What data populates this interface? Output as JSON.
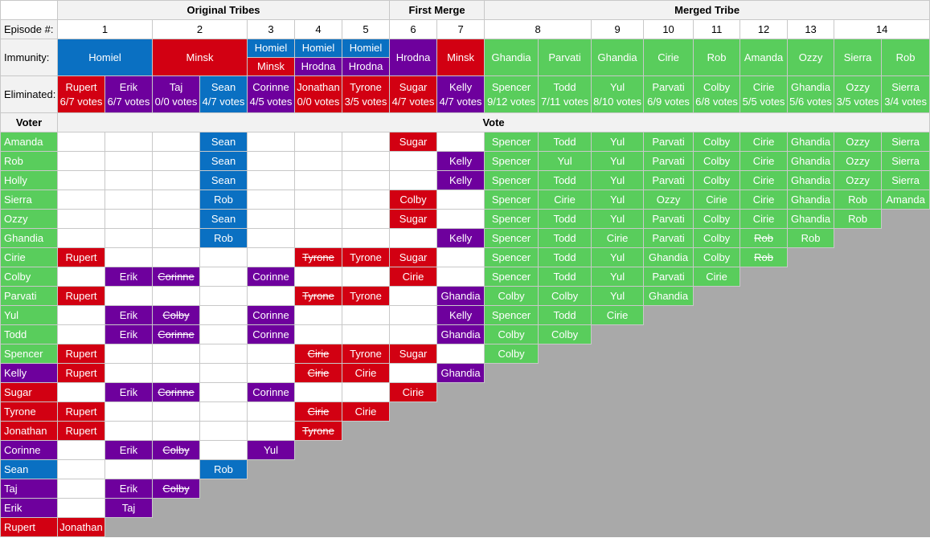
{
  "colors": {
    "Homiel": "#0a70c2",
    "Minsk": "#d20012",
    "Hrodna": "#6e009d",
    "Merged": "#59cd5c",
    "header_bg": "#f2f2f2",
    "empty_area": "#a9a9a9"
  },
  "header": {
    "original_tribes": "Original Tribes",
    "first_merge": "First Merge",
    "merged_tribe": "Merged Tribe",
    "episode_label": "Episode #:",
    "immunity_label": "Immunity:",
    "eliminated_label": "Eliminated:",
    "voter_label": "Voter",
    "vote_label": "Vote"
  },
  "episodes": [
    {
      "label": "1",
      "span": 2
    },
    {
      "label": "2",
      "span": 2
    },
    {
      "label": "3",
      "span": 1
    },
    {
      "label": "4",
      "span": 1
    },
    {
      "label": "5",
      "span": 1
    },
    {
      "label": "6",
      "span": 1
    },
    {
      "label": "7",
      "span": 1
    },
    {
      "label": "8",
      "span": 2
    },
    {
      "label": "9",
      "span": 1
    },
    {
      "label": "10",
      "span": 1
    },
    {
      "label": "11",
      "span": 1
    },
    {
      "label": "12",
      "span": 1
    },
    {
      "label": "13",
      "span": 1
    },
    {
      "label": "14",
      "span": 2
    }
  ],
  "immunity": [
    {
      "span": 2,
      "winners": [
        {
          "text": "Homiel",
          "tribe": "Homiel"
        }
      ]
    },
    {
      "span": 2,
      "winners": [
        {
          "text": "Minsk",
          "tribe": "Minsk"
        }
      ]
    },
    {
      "span": 1,
      "winners": [
        {
          "text": "Homiel",
          "tribe": "Homiel"
        },
        {
          "text": "Minsk",
          "tribe": "Minsk"
        }
      ]
    },
    {
      "span": 1,
      "winners": [
        {
          "text": "Homiel",
          "tribe": "Homiel"
        },
        {
          "text": "Hrodna",
          "tribe": "Hrodna"
        }
      ]
    },
    {
      "span": 1,
      "winners": [
        {
          "text": "Homiel",
          "tribe": "Homiel"
        },
        {
          "text": "Hrodna",
          "tribe": "Hrodna"
        }
      ]
    },
    {
      "span": 1,
      "winners": [
        {
          "text": "Hrodna",
          "tribe": "Hrodna"
        }
      ]
    },
    {
      "span": 1,
      "winners": [
        {
          "text": "Minsk",
          "tribe": "Minsk"
        }
      ]
    },
    {
      "span": 1,
      "winners": [
        {
          "text": "Ghandia",
          "tribe": "Merged"
        }
      ]
    },
    {
      "span": 1,
      "winners": [
        {
          "text": "Parvati",
          "tribe": "Merged"
        }
      ]
    },
    {
      "span": 1,
      "winners": [
        {
          "text": "Ghandia",
          "tribe": "Merged"
        }
      ]
    },
    {
      "span": 1,
      "winners": [
        {
          "text": "Cirie",
          "tribe": "Merged"
        }
      ]
    },
    {
      "span": 1,
      "winners": [
        {
          "text": "Rob",
          "tribe": "Merged"
        }
      ]
    },
    {
      "span": 1,
      "winners": [
        {
          "text": "Amanda",
          "tribe": "Merged"
        }
      ]
    },
    {
      "span": 1,
      "winners": [
        {
          "text": "Ozzy",
          "tribe": "Merged"
        }
      ]
    },
    {
      "span": 1,
      "winners": [
        {
          "text": "Sierra",
          "tribe": "Merged"
        }
      ]
    },
    {
      "span": 1,
      "winners": [
        {
          "text": "Rob",
          "tribe": "Merged"
        }
      ]
    }
  ],
  "eliminated": [
    {
      "name": "Rupert",
      "votes": "6/7 votes",
      "tribe": "Minsk"
    },
    {
      "name": "Erik",
      "votes": "6/7 votes",
      "tribe": "Hrodna"
    },
    {
      "name": "Taj",
      "votes": "0/0 votes",
      "tribe": "Hrodna"
    },
    {
      "name": "Sean",
      "votes": "4/7 votes",
      "tribe": "Homiel"
    },
    {
      "name": "Corinne",
      "votes": "4/5 votes",
      "tribe": "Hrodna"
    },
    {
      "name": "Jonathan",
      "votes": "0/0 votes",
      "tribe": "Minsk"
    },
    {
      "name": "Tyrone",
      "votes": "3/5 votes",
      "tribe": "Minsk"
    },
    {
      "name": "Sugar",
      "votes": "4/7 votes",
      "tribe": "Minsk"
    },
    {
      "name": "Kelly",
      "votes": "4/7 votes",
      "tribe": "Hrodna"
    },
    {
      "name": "Spencer",
      "votes": "9/12 votes",
      "tribe": "Merged"
    },
    {
      "name": "Todd",
      "votes": "7/11 votes",
      "tribe": "Merged"
    },
    {
      "name": "Yul",
      "votes": "8/10 votes",
      "tribe": "Merged"
    },
    {
      "name": "Parvati",
      "votes": "6/9 votes",
      "tribe": "Merged"
    },
    {
      "name": "Colby",
      "votes": "6/8 votes",
      "tribe": "Merged"
    },
    {
      "name": "Cirie",
      "votes": "5/5 votes",
      "tribe": "Merged"
    },
    {
      "name": "Ghandia",
      "votes": "5/6 votes",
      "tribe": "Merged"
    },
    {
      "name": "Ozzy",
      "votes": "3/5 votes",
      "tribe": "Merged"
    },
    {
      "name": "Sierra",
      "votes": "3/4 votes",
      "tribe": "Merged"
    }
  ],
  "voters": [
    {
      "name": "Amanda",
      "tribe": "Merged",
      "votes": [
        null,
        null,
        null,
        {
          "v": "Sean",
          "t": "Homiel"
        },
        null,
        null,
        null,
        {
          "v": "Sugar",
          "t": "Minsk"
        },
        null,
        {
          "v": "Spencer",
          "t": "Merged"
        },
        {
          "v": "Todd",
          "t": "Merged"
        },
        {
          "v": "Yul",
          "t": "Merged"
        },
        {
          "v": "Parvati",
          "t": "Merged"
        },
        {
          "v": "Colby",
          "t": "Merged"
        },
        {
          "v": "Cirie",
          "t": "Merged"
        },
        {
          "v": "Ghandia",
          "t": "Merged"
        },
        {
          "v": "Ozzy",
          "t": "Merged"
        },
        {
          "v": "Sierra",
          "t": "Merged"
        }
      ]
    },
    {
      "name": "Rob",
      "tribe": "Merged",
      "votes": [
        null,
        null,
        null,
        {
          "v": "Sean",
          "t": "Homiel"
        },
        null,
        null,
        null,
        null,
        {
          "v": "Kelly",
          "t": "Hrodna"
        },
        {
          "v": "Spencer",
          "t": "Merged"
        },
        {
          "v": "Yul",
          "t": "Merged"
        },
        {
          "v": "Yul",
          "t": "Merged"
        },
        {
          "v": "Parvati",
          "t": "Merged"
        },
        {
          "v": "Colby",
          "t": "Merged"
        },
        {
          "v": "Cirie",
          "t": "Merged"
        },
        {
          "v": "Ghandia",
          "t": "Merged"
        },
        {
          "v": "Ozzy",
          "t": "Merged"
        },
        {
          "v": "Sierra",
          "t": "Merged"
        }
      ]
    },
    {
      "name": "Holly",
      "tribe": "Merged",
      "votes": [
        null,
        null,
        null,
        {
          "v": "Sean",
          "t": "Homiel"
        },
        null,
        null,
        null,
        null,
        {
          "v": "Kelly",
          "t": "Hrodna"
        },
        {
          "v": "Spencer",
          "t": "Merged"
        },
        {
          "v": "Todd",
          "t": "Merged"
        },
        {
          "v": "Yul",
          "t": "Merged"
        },
        {
          "v": "Parvati",
          "t": "Merged"
        },
        {
          "v": "Colby",
          "t": "Merged"
        },
        {
          "v": "Cirie",
          "t": "Merged"
        },
        {
          "v": "Ghandia",
          "t": "Merged"
        },
        {
          "v": "Ozzy",
          "t": "Merged"
        },
        {
          "v": "Sierra",
          "t": "Merged"
        }
      ]
    },
    {
      "name": "Sierra",
      "tribe": "Merged",
      "votes": [
        null,
        null,
        null,
        {
          "v": "Rob",
          "t": "Homiel"
        },
        null,
        null,
        null,
        {
          "v": "Colby",
          "t": "Minsk"
        },
        null,
        {
          "v": "Spencer",
          "t": "Merged"
        },
        {
          "v": "Cirie",
          "t": "Merged"
        },
        {
          "v": "Yul",
          "t": "Merged"
        },
        {
          "v": "Ozzy",
          "t": "Merged"
        },
        {
          "v": "Cirie",
          "t": "Merged"
        },
        {
          "v": "Cirie",
          "t": "Merged"
        },
        {
          "v": "Ghandia",
          "t": "Merged"
        },
        {
          "v": "Rob",
          "t": "Merged"
        },
        {
          "v": "Amanda",
          "t": "Merged"
        }
      ]
    },
    {
      "name": "Ozzy",
      "tribe": "Merged",
      "votes": [
        null,
        null,
        null,
        {
          "v": "Sean",
          "t": "Homiel"
        },
        null,
        null,
        null,
        {
          "v": "Sugar",
          "t": "Minsk"
        },
        null,
        {
          "v": "Spencer",
          "t": "Merged"
        },
        {
          "v": "Todd",
          "t": "Merged"
        },
        {
          "v": "Yul",
          "t": "Merged"
        },
        {
          "v": "Parvati",
          "t": "Merged"
        },
        {
          "v": "Colby",
          "t": "Merged"
        },
        {
          "v": "Cirie",
          "t": "Merged"
        },
        {
          "v": "Ghandia",
          "t": "Merged"
        },
        {
          "v": "Rob",
          "t": "Merged"
        }
      ],
      "gray_from": 17
    },
    {
      "name": "Ghandia",
      "tribe": "Merged",
      "votes": [
        null,
        null,
        null,
        {
          "v": "Rob",
          "t": "Homiel"
        },
        null,
        null,
        null,
        null,
        {
          "v": "Kelly",
          "t": "Hrodna"
        },
        {
          "v": "Spencer",
          "t": "Merged"
        },
        {
          "v": "Todd",
          "t": "Merged"
        },
        {
          "v": "Cirie",
          "t": "Merged"
        },
        {
          "v": "Parvati",
          "t": "Merged"
        },
        {
          "v": "Colby",
          "t": "Merged"
        },
        {
          "v": "Rob",
          "t": "Merged",
          "s": true
        },
        {
          "v": "Rob",
          "t": "Merged"
        }
      ],
      "gray_from": 16
    },
    {
      "name": "Cirie",
      "tribe": "Merged",
      "votes": [
        {
          "v": "Rupert",
          "t": "Minsk"
        },
        null,
        null,
        null,
        null,
        {
          "v": "Tyrone",
          "t": "Minsk",
          "s": true
        },
        {
          "v": "Tyrone",
          "t": "Minsk"
        },
        {
          "v": "Sugar",
          "t": "Minsk"
        },
        null,
        {
          "v": "Spencer",
          "t": "Merged"
        },
        {
          "v": "Todd",
          "t": "Merged"
        },
        {
          "v": "Yul",
          "t": "Merged"
        },
        {
          "v": "Ghandia",
          "t": "Merged"
        },
        {
          "v": "Colby",
          "t": "Merged"
        },
        {
          "v": "Rob",
          "t": "Merged",
          "s": true
        }
      ],
      "gray_from": 15
    },
    {
      "name": "Colby",
      "tribe": "Merged",
      "votes": [
        null,
        {
          "v": "Erik",
          "t": "Hrodna"
        },
        {
          "v": "Corinne",
          "t": "Hrodna",
          "s": true
        },
        null,
        {
          "v": "Corinne",
          "t": "Hrodna"
        },
        null,
        null,
        {
          "v": "Cirie",
          "t": "Minsk"
        },
        null,
        {
          "v": "Spencer",
          "t": "Merged"
        },
        {
          "v": "Todd",
          "t": "Merged"
        },
        {
          "v": "Yul",
          "t": "Merged"
        },
        {
          "v": "Parvati",
          "t": "Merged"
        },
        {
          "v": "Cirie",
          "t": "Merged"
        }
      ],
      "gray_from": 14
    },
    {
      "name": "Parvati",
      "tribe": "Merged",
      "votes": [
        {
          "v": "Rupert",
          "t": "Minsk"
        },
        null,
        null,
        null,
        null,
        {
          "v": "Tyrone",
          "t": "Minsk",
          "s": true
        },
        {
          "v": "Tyrone",
          "t": "Minsk"
        },
        null,
        {
          "v": "Ghandia",
          "t": "Hrodna"
        },
        {
          "v": "Colby",
          "t": "Merged"
        },
        {
          "v": "Colby",
          "t": "Merged"
        },
        {
          "v": "Yul",
          "t": "Merged"
        },
        {
          "v": "Ghandia",
          "t": "Merged"
        }
      ],
      "gray_from": 13
    },
    {
      "name": "Yul",
      "tribe": "Merged",
      "votes": [
        null,
        {
          "v": "Erik",
          "t": "Hrodna"
        },
        {
          "v": "Colby",
          "t": "Hrodna",
          "s": true
        },
        null,
        {
          "v": "Corinne",
          "t": "Hrodna"
        },
        null,
        null,
        null,
        {
          "v": "Kelly",
          "t": "Hrodna"
        },
        {
          "v": "Spencer",
          "t": "Merged"
        },
        {
          "v": "Todd",
          "t": "Merged"
        },
        {
          "v": "Cirie",
          "t": "Merged"
        }
      ],
      "gray_from": 12
    },
    {
      "name": "Todd",
      "tribe": "Merged",
      "votes": [
        null,
        {
          "v": "Erik",
          "t": "Hrodna"
        },
        {
          "v": "Corinne",
          "t": "Hrodna",
          "s": true
        },
        null,
        {
          "v": "Corinne",
          "t": "Hrodna"
        },
        null,
        null,
        null,
        {
          "v": "Ghandia",
          "t": "Hrodna"
        },
        {
          "v": "Colby",
          "t": "Merged"
        },
        {
          "v": "Colby",
          "t": "Merged"
        }
      ],
      "gray_from": 11
    },
    {
      "name": "Spencer",
      "tribe": "Merged",
      "votes": [
        {
          "v": "Rupert",
          "t": "Minsk"
        },
        null,
        null,
        null,
        null,
        {
          "v": "Cirie",
          "t": "Minsk",
          "s": true
        },
        {
          "v": "Tyrone",
          "t": "Minsk"
        },
        {
          "v": "Sugar",
          "t": "Minsk"
        },
        null,
        {
          "v": "Colby",
          "t": "Merged"
        }
      ],
      "gray_from": 10
    },
    {
      "name": "Kelly",
      "tribe": "Hrodna",
      "votes": [
        {
          "v": "Rupert",
          "t": "Minsk"
        },
        null,
        null,
        null,
        null,
        {
          "v": "Cirie",
          "t": "Minsk",
          "s": true
        },
        {
          "v": "Cirie",
          "t": "Minsk"
        },
        null,
        {
          "v": "Ghandia",
          "t": "Hrodna"
        }
      ],
      "gray_from": 9
    },
    {
      "name": "Sugar",
      "tribe": "Minsk",
      "votes": [
        null,
        {
          "v": "Erik",
          "t": "Hrodna"
        },
        {
          "v": "Corinne",
          "t": "Hrodna",
          "s": true
        },
        null,
        {
          "v": "Corinne",
          "t": "Hrodna"
        },
        null,
        null,
        {
          "v": "Cirie",
          "t": "Minsk"
        }
      ],
      "gray_from": 8
    },
    {
      "name": "Tyrone",
      "tribe": "Minsk",
      "votes": [
        {
          "v": "Rupert",
          "t": "Minsk"
        },
        null,
        null,
        null,
        null,
        {
          "v": "Cirie",
          "t": "Minsk",
          "s": true
        },
        {
          "v": "Cirie",
          "t": "Minsk"
        }
      ],
      "gray_from": 7
    },
    {
      "name": "Jonathan",
      "tribe": "Minsk",
      "votes": [
        {
          "v": "Rupert",
          "t": "Minsk"
        },
        null,
        null,
        null,
        null,
        {
          "v": "Tyrone",
          "t": "Minsk",
          "s": true
        }
      ],
      "gray_from": 6
    },
    {
      "name": "Corinne",
      "tribe": "Hrodna",
      "votes": [
        null,
        {
          "v": "Erik",
          "t": "Hrodna"
        },
        {
          "v": "Colby",
          "t": "Hrodna",
          "s": true
        },
        null,
        {
          "v": "Yul",
          "t": "Hrodna"
        }
      ],
      "gray_from": 5
    },
    {
      "name": "Sean",
      "tribe": "Homiel",
      "votes": [
        null,
        null,
        null,
        {
          "v": "Rob",
          "t": "Homiel"
        }
      ],
      "gray_from": 4
    },
    {
      "name": "Taj",
      "tribe": "Hrodna",
      "votes": [
        null,
        {
          "v": "Erik",
          "t": "Hrodna"
        },
        {
          "v": "Colby",
          "t": "Hrodna",
          "s": true
        }
      ],
      "gray_from": 3
    },
    {
      "name": "Erik",
      "tribe": "Hrodna",
      "votes": [
        null,
        {
          "v": "Taj",
          "t": "Hrodna"
        }
      ],
      "gray_from": 2
    },
    {
      "name": "Rupert",
      "tribe": "Minsk",
      "votes": [
        {
          "v": "Jonathan",
          "t": "Minsk"
        }
      ],
      "gray_from": 1
    }
  ]
}
